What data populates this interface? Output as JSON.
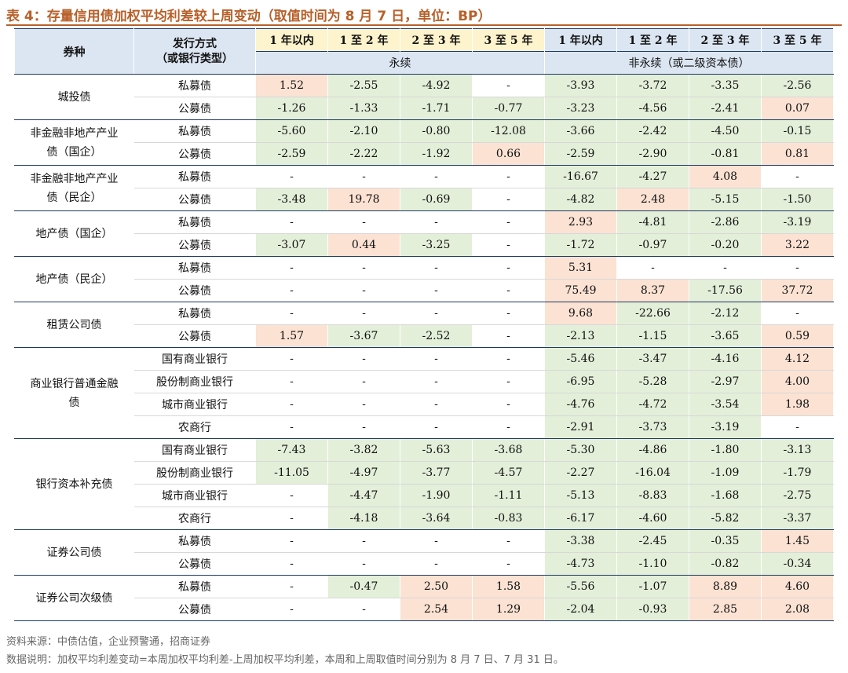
{
  "title": "表 4：存量信用债加权平均利差较上周变动（取值时间为 8 月 7 日，单位：BP）",
  "header": {
    "col_type": "券种",
    "col_method_line1": "发行方式",
    "col_method_line2": "（或银行类型）",
    "terms": [
      "1 年以内",
      "1 至 2 年",
      "2 至 3 年",
      "3 至 5 年"
    ],
    "perpetual": "永续",
    "non_perpetual": "非永续（或二级资本债）"
  },
  "groups": [
    {
      "name": "城投债",
      "rows": [
        {
          "method": "私募债",
          "values": [
            "1.52",
            "-2.55",
            "-4.92",
            "-",
            "-3.93",
            "-3.72",
            "-3.35",
            "-2.56"
          ]
        },
        {
          "method": "公募债",
          "values": [
            "-1.26",
            "-1.33",
            "-1.71",
            "-0.77",
            "-3.23",
            "-4.56",
            "-2.41",
            "0.07"
          ]
        }
      ]
    },
    {
      "name": "非金融非地产产业债（国企）",
      "rows": [
        {
          "method": "私募债",
          "values": [
            "-5.60",
            "-2.10",
            "-0.80",
            "-12.08",
            "-3.66",
            "-2.42",
            "-4.50",
            "-0.15"
          ]
        },
        {
          "method": "公募债",
          "values": [
            "-2.59",
            "-2.22",
            "-1.92",
            "0.66",
            "-2.59",
            "-2.90",
            "-0.81",
            "0.81"
          ]
        }
      ]
    },
    {
      "name": "非金融非地产产业债（民企）",
      "rows": [
        {
          "method": "私募债",
          "values": [
            "-",
            "-",
            "-",
            "-",
            "-16.67",
            "-4.27",
            "4.08",
            "-"
          ]
        },
        {
          "method": "公募债",
          "values": [
            "-3.48",
            "19.78",
            "-0.69",
            "-",
            "-4.82",
            "2.48",
            "-5.15",
            "-1.50"
          ]
        }
      ]
    },
    {
      "name": "地产债（国企）",
      "rows": [
        {
          "method": "私募债",
          "values": [
            "-",
            "-",
            "-",
            "-",
            "2.93",
            "-4.81",
            "-2.86",
            "-3.19"
          ]
        },
        {
          "method": "公募债",
          "values": [
            "-3.07",
            "0.44",
            "-3.25",
            "-",
            "-1.72",
            "-0.97",
            "-0.20",
            "3.22"
          ]
        }
      ]
    },
    {
      "name": "地产债（民企）",
      "rows": [
        {
          "method": "私募债",
          "values": [
            "-",
            "-",
            "-",
            "-",
            "5.31",
            "-",
            "-",
            "-"
          ]
        },
        {
          "method": "公募债",
          "values": [
            "-",
            "-",
            "-",
            "-",
            "75.49",
            "8.37",
            "-17.56",
            "37.72"
          ]
        }
      ]
    },
    {
      "name": "租赁公司债",
      "rows": [
        {
          "method": "私募债",
          "values": [
            "-",
            "-",
            "-",
            "-",
            "9.68",
            "-22.66",
            "-2.12",
            "-"
          ]
        },
        {
          "method": "公募债",
          "values": [
            "1.57",
            "-3.67",
            "-2.52",
            "-",
            "-2.13",
            "-1.15",
            "-3.65",
            "0.59"
          ]
        }
      ]
    },
    {
      "name": "商业银行普通金融债",
      "rows": [
        {
          "method": "国有商业银行",
          "values": [
            "-",
            "-",
            "-",
            "-",
            "-5.46",
            "-3.47",
            "-4.16",
            "4.12"
          ]
        },
        {
          "method": "股份制商业银行",
          "values": [
            "-",
            "-",
            "-",
            "-",
            "-6.95",
            "-5.28",
            "-2.97",
            "4.00"
          ]
        },
        {
          "method": "城市商业银行",
          "values": [
            "-",
            "-",
            "-",
            "-",
            "-4.76",
            "-4.72",
            "-3.54",
            "1.98"
          ]
        },
        {
          "method": "农商行",
          "values": [
            "-",
            "-",
            "-",
            "-",
            "-2.91",
            "-3.73",
            "-3.19",
            "-"
          ]
        }
      ]
    },
    {
      "name": "银行资本补充债",
      "rows": [
        {
          "method": "国有商业银行",
          "values": [
            "-7.43",
            "-3.82",
            "-5.63",
            "-3.68",
            "-5.30",
            "-4.86",
            "-1.80",
            "-3.13"
          ]
        },
        {
          "method": "股份制商业银行",
          "values": [
            "-11.05",
            "-4.97",
            "-3.77",
            "-4.57",
            "-2.27",
            "-16.04",
            "-1.09",
            "-1.79"
          ]
        },
        {
          "method": "城市商业银行",
          "values": [
            "-",
            "-4.47",
            "-1.90",
            "-1.11",
            "-5.13",
            "-8.83",
            "-1.68",
            "-2.75"
          ]
        },
        {
          "method": "农商行",
          "values": [
            "-",
            "-4.18",
            "-3.64",
            "-0.83",
            "-6.17",
            "-4.60",
            "-5.82",
            "-3.37"
          ]
        }
      ]
    },
    {
      "name": "证券公司债",
      "rows": [
        {
          "method": "私募债",
          "values": [
            "-",
            "-",
            "-",
            "-",
            "-3.38",
            "-2.45",
            "-0.35",
            "1.45"
          ]
        },
        {
          "method": "公募债",
          "values": [
            "-",
            "-",
            "-",
            "-",
            "-4.73",
            "-1.10",
            "-0.82",
            "-0.34"
          ]
        }
      ]
    },
    {
      "name": "证券公司次级债",
      "rows": [
        {
          "method": "私募债",
          "values": [
            "-",
            "-0.47",
            "2.50",
            "1.58",
            "-5.56",
            "-1.07",
            "8.89",
            "4.60"
          ]
        },
        {
          "method": "公募债",
          "values": [
            "-",
            "-",
            "2.54",
            "1.29",
            "-2.04",
            "-0.93",
            "2.85",
            "2.08"
          ]
        }
      ]
    }
  ],
  "footer": {
    "source": "资料来源：中债估值，企业预警通，招商证券",
    "explanation": "数据说明：加权平均利差变动=本周加权平均利差-上周加权平均利差，本周和上周取值时间分别为 8 月 7 日、7 月 31 日。"
  },
  "colors": {
    "title": "#b8602a",
    "header_bg": "#dce6f2",
    "perpetual_header_bg": "#fdf3cc",
    "positive_bg": "#fbe2d3",
    "negative_bg": "#e3efd9",
    "rule": "#1f3a60"
  }
}
